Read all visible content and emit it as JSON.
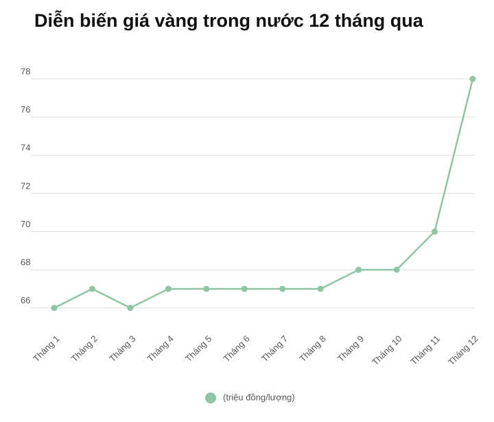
{
  "chart_data": {
    "type": "line",
    "title": "Diễn biến giá vàng trong nước 12 tháng qua",
    "categories": [
      "Tháng 1",
      "Tháng 2",
      "Tháng 3",
      "Tháng 4",
      "Tháng 5",
      "Tháng 6",
      "Tháng 7",
      "Tháng 8",
      "Tháng 9",
      "Tháng 10",
      "Tháng 11",
      "Tháng 12"
    ],
    "series": [
      {
        "name": "(triệu đồng/lượng)",
        "color": "#8ec6a3",
        "values": [
          66,
          67,
          66,
          67,
          67,
          67,
          67,
          67,
          68,
          68,
          70,
          78
        ]
      }
    ],
    "ylim": [
      65.2,
      78
    ],
    "yticks": [
      66,
      68,
      70,
      72,
      74,
      76,
      78
    ],
    "grid": true,
    "legend": "bottom"
  }
}
